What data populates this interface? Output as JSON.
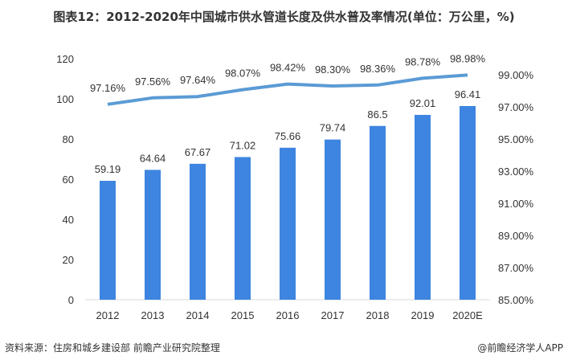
{
  "title": "图表12：2012-2020年中国城市供水管道长度及供水普及率情况(单位：万公里，%)",
  "source": "资料来源：住房和城乡建设部 前瞻产业研究院整理",
  "credit": "@前瞻经济学人APP",
  "chart_data": {
    "type": "bar+line",
    "categories": [
      "2012",
      "2013",
      "2014",
      "2015",
      "2016",
      "2017",
      "2018",
      "2019",
      "2020E"
    ],
    "bar_values": [
      59.19,
      64.64,
      67.67,
      71.02,
      75.66,
      79.74,
      86.5,
      92.01,
      96.41
    ],
    "bar_labels": [
      "59.19",
      "64.64",
      "67.67",
      "71.02",
      "75.66",
      "79.74",
      "86.5",
      "92.01",
      "96.41"
    ],
    "line_values": [
      97.16,
      97.56,
      97.64,
      98.07,
      98.42,
      98.3,
      98.36,
      98.78,
      98.98
    ],
    "line_labels": [
      "97.16%",
      "97.56%",
      "97.64%",
      "98.07%",
      "98.42%",
      "98.30%",
      "98.36%",
      "98.78%",
      "98.98%"
    ],
    "left_axis": {
      "range": [
        0,
        120
      ],
      "ticks": [
        "0",
        "20",
        "40",
        "60",
        "80",
        "100",
        "120"
      ]
    },
    "right_axis": {
      "range": [
        85,
        100
      ],
      "ticks": [
        "85.00%",
        "87.00%",
        "89.00%",
        "91.00%",
        "93.00%",
        "95.00%",
        "97.00%",
        "99.00%"
      ]
    },
    "grid": false,
    "legend": "none",
    "colors": {
      "bar": "#3d85e0",
      "line": "#5b9bd5"
    }
  }
}
